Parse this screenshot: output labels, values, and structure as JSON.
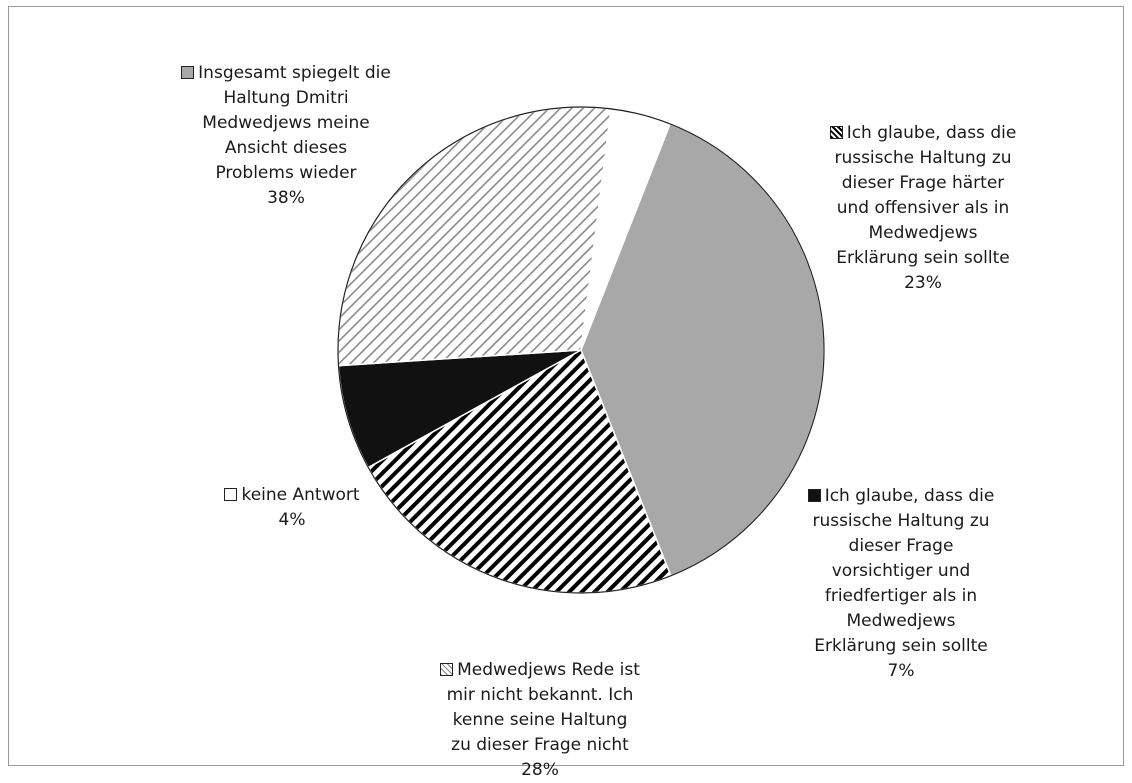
{
  "chart_data": {
    "type": "pie",
    "title": "",
    "slices": [
      {
        "label": "Insgesamt spiegelt die Haltung Dmitri Medwedjews meine Ansicht dieses Problems wieder",
        "value": 38,
        "value_label": "38%",
        "fill": "solid-gray",
        "color": "#a8a8a8"
      },
      {
        "label": "Ich glaube, dass die russische Haltung zu dieser Frage härter und offensiver als in Medwedjews Erklärung sein sollte",
        "value": 23,
        "value_label": "23%",
        "fill": "dense-diagonal-hatch",
        "color": "#000000"
      },
      {
        "label": "Ich glaube, dass die russische Haltung zu dieser Frage vorsichtiger und friedfertiger als in Medwedjews Erklärung sein sollte",
        "value": 7,
        "value_label": "7%",
        "fill": "solid-black",
        "color": "#111111"
      },
      {
        "label": "Medwedjews Rede ist mir nicht bekannt. Ich kenne seine Haltung zu dieser Frage nicht",
        "value": 28,
        "value_label": "28%",
        "fill": "light-diagonal-hatch",
        "color": "#9a9a9a"
      },
      {
        "label": "keine Antwort",
        "value": 4,
        "value_label": "4%",
        "fill": "white",
        "color": "#ffffff"
      }
    ],
    "labels_wrapped": [
      "Insgesamt spiegelt die\nHaltung Dmitri\nMedwedjews meine\nAnsicht dieses\nProblems wieder\n38%",
      "Ich glaube, dass die\nrussische Haltung zu\ndieser Frage härter\nund offensiver als in\nMedwedjews\nErklärung sein sollte\n23%",
      "Ich glaube, dass die\nrussische Haltung zu\ndieser Frage\nvorsichtiger und\nfriedfertiger als in\nMedwedjews\nErklärung sein sollte\n7%",
      "Medwedjews Rede ist\nmir nicht bekannt. Ich\nkenne seine Haltung\nzu dieser Frage nicht\n28%",
      "keine Antwort\n4%"
    ],
    "legend": "inline-labels"
  }
}
